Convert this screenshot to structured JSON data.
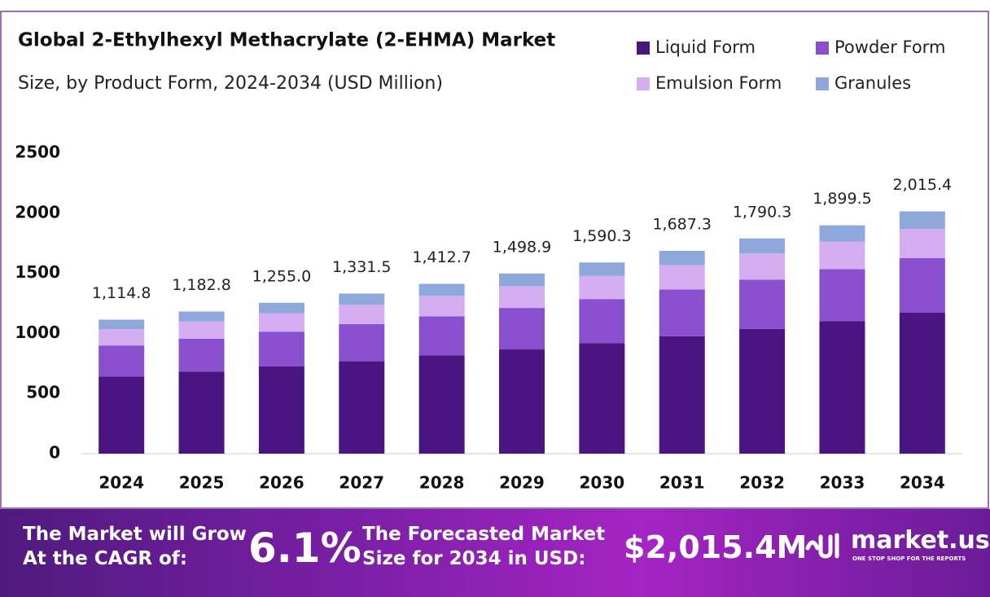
{
  "chart_data": {
    "type": "stacked-bar",
    "title": "Global 2-Ethylhexyl Methacrylate (2-EHMA) Market",
    "subtitle": "Size, by Product Form, 2024-2034 (USD Million)",
    "categories": [
      "2024",
      "2025",
      "2026",
      "2027",
      "2028",
      "2029",
      "2030",
      "2031",
      "2032",
      "2033",
      "2034"
    ],
    "series": [
      {
        "name": "Liquid Form",
        "color": "#4a1580",
        "values": [
          640.0,
          683.0,
          725.0,
          770.0,
          817.0,
          867.0,
          920.0,
          977.0,
          1037.0,
          1101.0,
          1172.0
        ]
      },
      {
        "name": "Powder Form",
        "color": "#8a4fcf",
        "values": [
          260.0,
          273.0,
          290.0,
          307.0,
          325.0,
          345.0,
          366.0,
          388.0,
          411.0,
          434.0,
          454.0
        ]
      },
      {
        "name": "Emulsion Form",
        "color": "#d4aef0",
        "values": [
          135.0,
          143.0,
          152.0,
          161.0,
          171.0,
          181.0,
          192.0,
          204.0,
          217.0,
          230.0,
          244.0
        ]
      },
      {
        "name": "Granules",
        "color": "#8fa8dc",
        "values": [
          79.8,
          83.8,
          88.0,
          93.5,
          99.7,
          105.9,
          112.3,
          118.3,
          125.3,
          134.5,
          145.4
        ]
      }
    ],
    "totals": {
      "values": [
        1114.8,
        1182.8,
        1255.0,
        1331.5,
        1412.7,
        1498.9,
        1590.3,
        1687.3,
        1790.3,
        1899.5,
        2015.4
      ],
      "value_labels": [
        "1,114.8",
        "1,182.8",
        "1,255.0",
        "1,331.5",
        "1,412.7",
        "1,498.9",
        "1,590.3",
        "1,687.3",
        "1,790.3",
        "1,899.5",
        "2,015.4"
      ]
    },
    "ylim": [
      0,
      2500
    ],
    "yticks": [
      0,
      500,
      1000,
      1500,
      2000,
      2500
    ],
    "grid": false,
    "legend": "top-right"
  },
  "footer": {
    "cagr_text": [
      "The Market will Grow",
      "At the CAGR of:"
    ],
    "cagr": "6.1%",
    "forecast_text": [
      "The Forecasted Market",
      "Size for 2034 in USD:"
    ],
    "forecast": "$2,015.4M",
    "brand": "market.us",
    "tagline": "ONE STOP SHOP FOR THE REPORTS"
  }
}
